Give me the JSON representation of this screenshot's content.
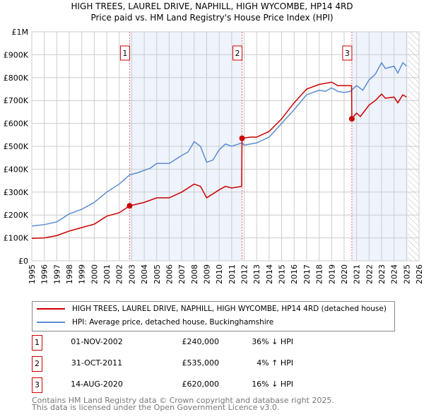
{
  "title": "HIGH TREES, LAUREL DRIVE, NAPHILL, HIGH WYCOMBE, HP14 4RD",
  "subtitle": "Price paid vs. HM Land Registry's House Price Index (HPI)",
  "chart_data": {
    "type": "line",
    "xlim": [
      1995,
      2026
    ],
    "ylim": [
      0,
      1000000
    ],
    "x_ticks": [
      "1995",
      "1996",
      "1997",
      "1998",
      "1999",
      "2000",
      "2001",
      "2002",
      "2003",
      "2004",
      "2005",
      "2006",
      "2007",
      "2008",
      "2009",
      "2010",
      "2011",
      "2012",
      "2013",
      "2014",
      "2015",
      "2016",
      "2017",
      "2018",
      "2019",
      "2020",
      "2021",
      "2022",
      "2023",
      "2024",
      "2025",
      "2026"
    ],
    "y_ticks": [
      {
        "v": 0,
        "label": "£0"
      },
      {
        "v": 100000,
        "label": "£100K"
      },
      {
        "v": 200000,
        "label": "£200K"
      },
      {
        "v": 300000,
        "label": "£300K"
      },
      {
        "v": 400000,
        "label": "£400K"
      },
      {
        "v": 500000,
        "label": "£500K"
      },
      {
        "v": 600000,
        "label": "£600K"
      },
      {
        "v": 700000,
        "label": "£700K"
      },
      {
        "v": 800000,
        "label": "£800K"
      },
      {
        "v": 900000,
        "label": "£900K"
      },
      {
        "v": 1000000,
        "label": "£1M"
      }
    ],
    "grid": true,
    "series": [
      {
        "name": "HIGH TREES, LAUREL DRIVE, NAPHILL, HIGH WYCOMBE, HP14 4RD (detached house)",
        "color": "#cc0000",
        "x": [
          1995,
          1996,
          1997,
          1998,
          1999,
          2000,
          2001,
          2002,
          2002.83,
          2004,
          2005,
          2006,
          2007,
          2008,
          2008.5,
          2009,
          2010,
          2010.5,
          2011,
          2011.8,
          2011.83,
          2012.5,
          2013,
          2014,
          2015,
          2016,
          2017,
          2018,
          2019,
          2019.5,
          2020,
          2020.6,
          2020.62,
          2021,
          2021.3,
          2022,
          2022.5,
          2023,
          2023.3,
          2024,
          2024.3,
          2024.7,
          2025
        ],
        "y": [
          98000,
          100000,
          110000,
          130000,
          145000,
          160000,
          195000,
          210000,
          240000,
          255000,
          275000,
          275000,
          300000,
          335000,
          325000,
          275000,
          310000,
          325000,
          318000,
          325000,
          535000,
          540000,
          540000,
          565000,
          620000,
          690000,
          750000,
          770000,
          780000,
          765000,
          765000,
          765000,
          620000,
          645000,
          630000,
          680000,
          700000,
          728000,
          710000,
          715000,
          690000,
          725000,
          715000
        ]
      },
      {
        "name": "HPI: Average price, detached house, Buckinghamshire",
        "color": "#5b8dd0",
        "x": [
          1995,
          1996,
          1997,
          1998,
          1999,
          2000,
          2001,
          2002,
          2002.83,
          2003.5,
          2004.5,
          2005,
          2006,
          2007,
          2007.5,
          2008,
          2008.5,
          2009,
          2009.5,
          2010,
          2010.5,
          2011,
          2011.83,
          2012,
          2013,
          2014,
          2015,
          2016,
          2017,
          2018,
          2018.5,
          2019,
          2019.5,
          2020,
          2020.5,
          2021,
          2021.5,
          2022,
          2022.5,
          2023,
          2023.3,
          2024,
          2024.3,
          2024.7,
          2025
        ],
        "y": [
          152000,
          158000,
          170000,
          205000,
          225000,
          255000,
          300000,
          335000,
          375000,
          385000,
          405000,
          425000,
          425000,
          460000,
          475000,
          520000,
          500000,
          430000,
          440000,
          485000,
          510000,
          500000,
          515000,
          505000,
          515000,
          540000,
          600000,
          660000,
          725000,
          745000,
          740000,
          755000,
          740000,
          735000,
          740000,
          765000,
          745000,
          790000,
          815000,
          865000,
          840000,
          850000,
          820000,
          865000,
          850000
        ]
      }
    ],
    "sales": [
      {
        "label": "1",
        "x": 2002.83,
        "y": 240000,
        "date": "01-NOV-2002",
        "price": "£240,000",
        "hpi": "36% ↓ HPI"
      },
      {
        "label": "2",
        "x": 2011.83,
        "y": 535000,
        "date": "31-OCT-2011",
        "price": "£535,000",
        "hpi": "4% ↑ HPI"
      },
      {
        "label": "3",
        "x": 2020.62,
        "y": 620000,
        "date": "14-AUG-2020",
        "price": "£620,000",
        "hpi": "16% ↓ HPI"
      }
    ],
    "forecast_start": 2025.1,
    "legend_position": "bottom"
  },
  "footer": [
    "Contains HM Land Registry data © Crown copyright and database right 2025.",
    "This data is licensed under the Open Government Licence v3.0."
  ]
}
